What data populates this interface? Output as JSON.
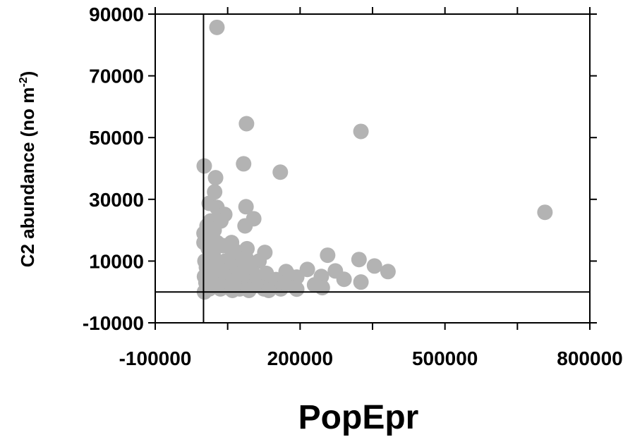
{
  "chart_data": {
    "type": "scatter",
    "xlabel": "PopEpr",
    "ylabel": "C2 abundance (no m",
    "ylabel_sup": "-2",
    "ylabel_end": ")",
    "color": "#b3b3b3",
    "xlim": [
      -100000,
      800000
    ],
    "ylim": [
      -10000,
      90000
    ],
    "xticks": [
      -100000,
      200000,
      500000,
      800000
    ],
    "xminorticks": [
      50000,
      350000,
      650000
    ],
    "yticks": [
      -10000,
      10000,
      30000,
      50000,
      70000,
      90000
    ],
    "vline": 0,
    "hline": 0,
    "x": [
      27800,
      89000,
      326000,
      707000,
      1500,
      25000,
      83000,
      159000,
      23000,
      11700,
      27800,
      88000,
      44000,
      104000,
      86000,
      7300,
      127000,
      257000,
      322000,
      354000,
      382000,
      273000,
      291000,
      326000,
      215000,
      171000,
      193000,
      244000,
      230000,
      246000,
      193000,
      2000,
      5000,
      8000,
      3000,
      10000,
      15000,
      20000,
      25000,
      30000,
      35000,
      40000,
      45000,
      50000,
      55000,
      60000,
      65000,
      70000,
      75000,
      80000,
      85000,
      90000,
      95000,
      100000,
      105000,
      110000,
      115000,
      120000,
      125000,
      130000,
      140000,
      150000,
      160000,
      170000,
      180000,
      190000,
      12000,
      18000,
      28000,
      38000,
      48000,
      58000,
      68000,
      78000,
      88000,
      98000,
      22000,
      1000,
      1000,
      15000,
      36000,
      6000,
      60000,
      94000,
      135000,
      2000
    ],
    "values": [
      85700,
      54500,
      52000,
      25800,
      40800,
      37000,
      41500,
      38800,
      32400,
      28700,
      27400,
      27600,
      25100,
      23700,
      21400,
      21400,
      12800,
      11900,
      10500,
      8400,
      6600,
      6800,
      4100,
      3200,
      7300,
      6600,
      4800,
      5000,
      2300,
      1400,
      900,
      0,
      3000,
      6000,
      10000,
      14000,
      18000,
      12000,
      8000,
      4000,
      1000,
      15000,
      10000,
      6000,
      2000,
      12000,
      8000,
      4000,
      1000,
      9000,
      5000,
      14000,
      3000,
      7000,
      2000,
      5000,
      10000,
      3000,
      1000,
      6000,
      2000,
      4000,
      1000,
      3000,
      5000,
      1500,
      1000,
      4000,
      16000,
      7000,
      1500,
      16000,
      13000,
      6000,
      11000,
      9000,
      20000,
      16000,
      19000,
      23000,
      23000,
      8000,
      500,
      500,
      500,
      5000
    ]
  }
}
